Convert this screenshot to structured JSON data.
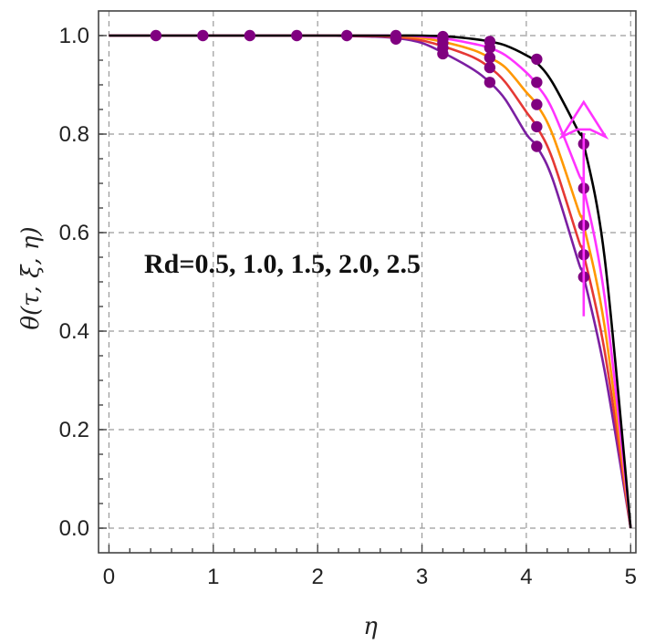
{
  "chart_data": {
    "type": "line",
    "title": "",
    "xlabel": "η",
    "ylabel": "θ(τ, ξ, η)",
    "xlim": [
      -0.1,
      5.05
    ],
    "ylim": [
      -0.05,
      1.05
    ],
    "xticks": [
      "0",
      "1",
      "2",
      "3",
      "4",
      "5"
    ],
    "yticks": [
      "0.0",
      "0.2",
      "0.4",
      "0.6",
      "0.8",
      "1.0"
    ],
    "grid": true,
    "annotation": "Rd=0.5, 1.0, 1.5, 2.0, 2.5",
    "colors": [
      "#7b1fa2",
      "#e53935",
      "#ff9800",
      "#ff33ff",
      "#000000"
    ],
    "marker_color": "#800080",
    "arrow_color": "#ff33ff",
    "series": [
      {
        "x": [
          0.0,
          0.5,
          1.0,
          1.5,
          2.0,
          2.5,
          2.75,
          3.0,
          3.25,
          3.5,
          3.65,
          3.8,
          4.0,
          4.1,
          4.25,
          4.5,
          4.55,
          4.75,
          5.0
        ],
        "y": [
          1.0,
          1.0,
          1.0,
          1.0,
          1.0,
          0.998,
          0.995,
          0.985,
          0.96,
          0.93,
          0.905,
          0.87,
          0.8,
          0.775,
          0.71,
          0.54,
          0.51,
          0.32,
          0.0
        ]
      },
      {
        "x": [
          0.0,
          0.5,
          1.0,
          1.5,
          2.0,
          2.5,
          2.75,
          3.0,
          3.25,
          3.5,
          3.65,
          3.8,
          4.0,
          4.1,
          4.25,
          4.5,
          4.55,
          4.75,
          5.0
        ],
        "y": [
          1.0,
          1.0,
          1.0,
          1.0,
          1.0,
          0.999,
          0.997,
          0.99,
          0.975,
          0.955,
          0.935,
          0.905,
          0.845,
          0.815,
          0.75,
          0.585,
          0.555,
          0.36,
          0.0
        ]
      },
      {
        "x": [
          0.0,
          0.5,
          1.0,
          1.5,
          2.0,
          2.5,
          2.75,
          3.0,
          3.25,
          3.5,
          3.65,
          3.8,
          4.0,
          4.1,
          4.25,
          4.5,
          4.55,
          4.75,
          5.0
        ],
        "y": [
          1.0,
          1.0,
          1.0,
          1.0,
          1.0,
          1.0,
          0.999,
          0.995,
          0.985,
          0.97,
          0.955,
          0.935,
          0.885,
          0.86,
          0.8,
          0.645,
          0.615,
          0.41,
          0.0
        ]
      },
      {
        "x": [
          0.0,
          0.5,
          1.0,
          1.5,
          2.0,
          2.5,
          2.75,
          3.0,
          3.25,
          3.5,
          3.65,
          3.8,
          4.0,
          4.1,
          4.25,
          4.5,
          4.55,
          4.75,
          5.0
        ],
        "y": [
          1.0,
          1.0,
          1.0,
          1.0,
          1.0,
          1.0,
          1.0,
          0.998,
          0.993,
          0.983,
          0.975,
          0.96,
          0.925,
          0.9,
          0.85,
          0.72,
          0.69,
          0.47,
          0.0
        ]
      },
      {
        "x": [
          0.0,
          0.5,
          1.0,
          1.5,
          2.0,
          2.5,
          2.75,
          3.0,
          3.25,
          3.5,
          3.65,
          3.8,
          4.0,
          4.1,
          4.25,
          4.5,
          4.55,
          4.75,
          5.0
        ],
        "y": [
          1.0,
          1.0,
          1.0,
          1.0,
          1.0,
          1.0,
          1.0,
          1.0,
          0.998,
          0.993,
          0.988,
          0.98,
          0.96,
          0.945,
          0.905,
          0.805,
          0.78,
          0.55,
          0.0
        ]
      }
    ],
    "markers": [
      {
        "x": 0.45,
        "y": 1.0
      },
      {
        "x": 0.9,
        "y": 1.0
      },
      {
        "x": 1.35,
        "y": 1.0
      },
      {
        "x": 1.8,
        "y": 1.0
      },
      {
        "x": 2.28,
        "y": 1.0
      },
      {
        "x": 2.75,
        "y": 0.993
      },
      {
        "x": 2.75,
        "y": 0.997
      },
      {
        "x": 2.75,
        "y": 1.0
      },
      {
        "x": 3.2,
        "y": 0.963
      },
      {
        "x": 3.2,
        "y": 0.975
      },
      {
        "x": 3.2,
        "y": 0.985
      },
      {
        "x": 3.2,
        "y": 0.993
      },
      {
        "x": 3.2,
        "y": 0.998
      },
      {
        "x": 3.65,
        "y": 0.905
      },
      {
        "x": 3.65,
        "y": 0.935
      },
      {
        "x": 3.65,
        "y": 0.955
      },
      {
        "x": 3.65,
        "y": 0.975
      },
      {
        "x": 3.65,
        "y": 0.988
      },
      {
        "x": 4.1,
        "y": 0.775
      },
      {
        "x": 4.1,
        "y": 0.815
      },
      {
        "x": 4.1,
        "y": 0.86
      },
      {
        "x": 4.1,
        "y": 0.905
      },
      {
        "x": 4.1,
        "y": 0.952
      },
      {
        "x": 4.55,
        "y": 0.51
      },
      {
        "x": 4.55,
        "y": 0.555
      },
      {
        "x": 4.55,
        "y": 0.615
      },
      {
        "x": 4.55,
        "y": 0.69
      },
      {
        "x": 4.55,
        "y": 0.78
      }
    ],
    "arrow": {
      "x": 4.55,
      "y_from": 0.43,
      "y_to": 0.865
    }
  }
}
